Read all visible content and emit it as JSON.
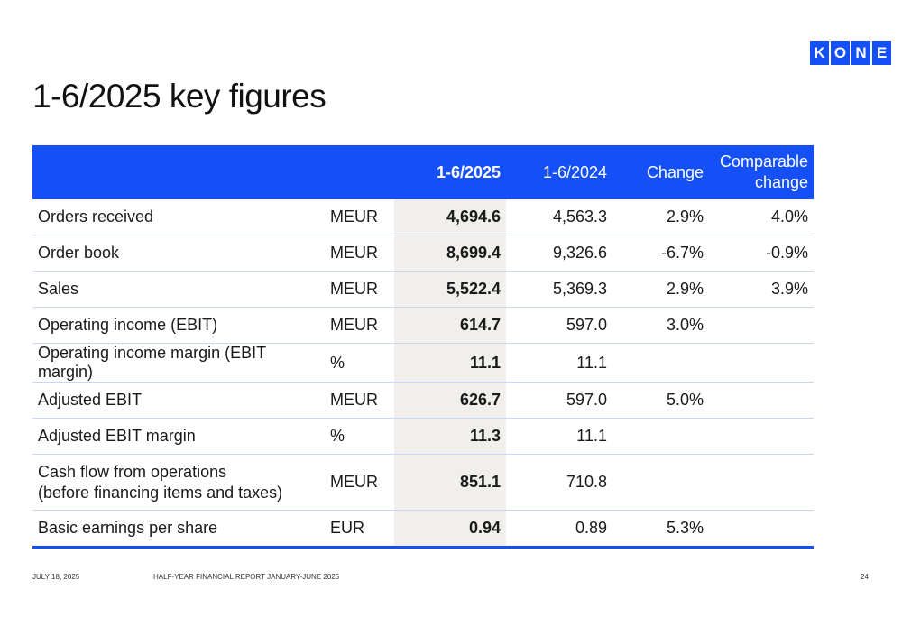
{
  "logo": {
    "letters": [
      "K",
      "O",
      "N",
      "E"
    ]
  },
  "title": "1-6/2025 key figures",
  "table": {
    "headers": [
      "",
      "",
      "1-6/2025",
      "1-6/2024",
      "Change",
      "Comparable change"
    ],
    "rows": [
      {
        "label": "Orders received",
        "unit": "MEUR",
        "cur": "4,694.6",
        "prev": "4,563.3",
        "change": "2.9%",
        "comp": "4.0%"
      },
      {
        "label": "Order book",
        "unit": "MEUR",
        "cur": "8,699.4",
        "prev": "9,326.6",
        "change": "-6.7%",
        "comp": "-0.9%"
      },
      {
        "label": "Sales",
        "unit": "MEUR",
        "cur": "5,522.4",
        "prev": "5,369.3",
        "change": "2.9%",
        "comp": "3.9%"
      },
      {
        "label": "Operating income (EBIT)",
        "unit": "MEUR",
        "cur": "614.7",
        "prev": "597.0",
        "change": "3.0%",
        "comp": ""
      },
      {
        "label": "Operating income margin (EBIT margin)",
        "unit": "%",
        "cur": "11.1",
        "prev": "11.1",
        "change": "",
        "comp": ""
      },
      {
        "label": "Adjusted EBIT",
        "unit": "MEUR",
        "cur": "626.7",
        "prev": "597.0",
        "change": "5.0%",
        "comp": ""
      },
      {
        "label": "Adjusted EBIT margin",
        "unit": "%",
        "cur": "11.3",
        "prev": "11.1",
        "change": "",
        "comp": ""
      },
      {
        "label": "Cash flow from operations",
        "label2": "(before financing items and taxes)",
        "unit": "MEUR",
        "cur": "851.1",
        "prev": "710.8",
        "change": "",
        "comp": ""
      },
      {
        "label": "Basic earnings per share",
        "unit": "EUR",
        "cur": "0.94",
        "prev": "0.89",
        "change": "5.3%",
        "comp": ""
      }
    ]
  },
  "footer": {
    "date": "JULY 18, 2025",
    "report": "HALF-YEAR FINANCIAL REPORT JANUARY-JUNE 2025",
    "page": "24"
  },
  "colors": {
    "accent": "#1450f5",
    "highlight_col": "#f1efec"
  }
}
